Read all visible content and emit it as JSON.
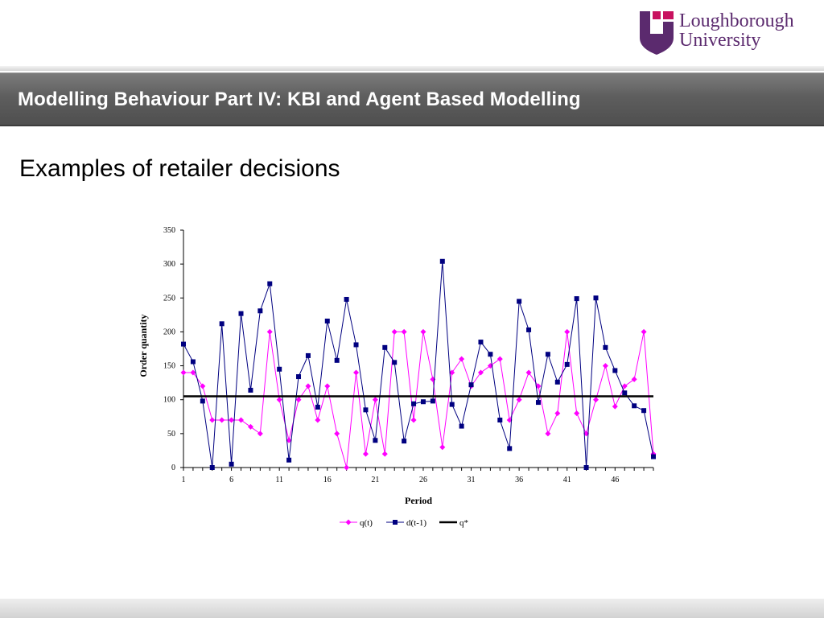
{
  "logo": {
    "line1": "Loughborough",
    "line2": "University",
    "color": "#5b2a6e",
    "accent": "#c8115f"
  },
  "banner": {
    "title": "Modelling Behaviour Part IV: KBI and Agent Based Modelling"
  },
  "slide": {
    "heading": "Examples of retailer decisions"
  },
  "chart_data": {
    "type": "line",
    "title": "",
    "xlabel": "Period",
    "ylabel": "Order quantity",
    "ylim": [
      0,
      350
    ],
    "yticks": [
      0,
      50,
      100,
      150,
      200,
      250,
      300,
      350
    ],
    "xlim": [
      1,
      50
    ],
    "xticks": [
      1,
      6,
      11,
      16,
      21,
      26,
      31,
      36,
      41,
      46
    ],
    "grid": false,
    "legend": "bottom-center",
    "x": [
      1,
      2,
      3,
      4,
      5,
      6,
      7,
      8,
      9,
      10,
      11,
      12,
      13,
      14,
      15,
      16,
      17,
      18,
      19,
      20,
      21,
      22,
      23,
      24,
      25,
      26,
      27,
      28,
      29,
      30,
      31,
      32,
      33,
      34,
      35,
      36,
      37,
      38,
      39,
      40,
      41,
      42,
      43,
      44,
      45,
      46,
      47,
      48,
      49,
      50
    ],
    "series": [
      {
        "name": "q(t)",
        "color": "#ff00ff",
        "marker": "diamond",
        "values": [
          140,
          140,
          120,
          70,
          70,
          70,
          70,
          60,
          50,
          200,
          100,
          40,
          100,
          120,
          70,
          120,
          50,
          0,
          140,
          20,
          100,
          20,
          200,
          200,
          70,
          200,
          130,
          30,
          140,
          160,
          120,
          140,
          150,
          160,
          70,
          100,
          140,
          120,
          50,
          80,
          200,
          80,
          50,
          100,
          150,
          90,
          120,
          130,
          200,
          20
        ]
      },
      {
        "name": "d(t-1)",
        "color": "#000080",
        "marker": "square",
        "values": [
          182,
          156,
          98,
          0,
          212,
          5,
          227,
          114,
          231,
          271,
          145,
          11,
          134,
          165,
          89,
          216,
          158,
          248,
          181,
          85,
          40,
          177,
          155,
          39,
          94,
          97,
          98,
          304,
          93,
          61,
          122,
          185,
          167,
          70,
          28,
          245,
          203,
          96,
          167,
          126,
          152,
          249,
          0,
          250,
          177,
          143,
          110,
          91,
          84,
          16
        ]
      },
      {
        "name": "q*",
        "color": "#000000",
        "marker": "none",
        "constant": 105
      }
    ]
  }
}
